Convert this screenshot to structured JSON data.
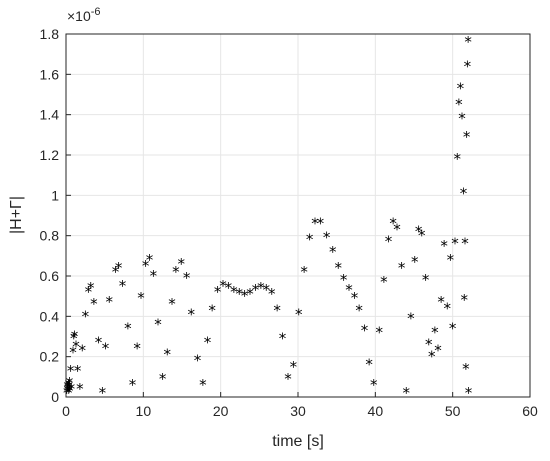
{
  "chart_data": {
    "type": "scatter",
    "title": "",
    "xlabel": "time [s]",
    "ylabel": "|H+Γ|",
    "y_exponent_label": "×10",
    "y_exponent_power": "-6",
    "xlim": [
      0,
      60
    ],
    "ylim": [
      0,
      1.8
    ],
    "x_ticks": [
      "0",
      "10",
      "20",
      "30",
      "40",
      "50",
      "60"
    ],
    "y_ticks": [
      "0",
      "0.2",
      "0.4",
      "0.6",
      "0.8",
      "1",
      "1.2",
      "1.4",
      "1.6",
      "1.8"
    ],
    "grid": true,
    "marker": "*",
    "marker_color": "#000000",
    "series": [
      {
        "x": [
          0.1,
          0.15,
          0.2,
          0.25,
          0.3,
          0.35,
          0.4,
          0.45,
          0.5,
          0.6,
          0.7,
          0.9,
          1.0,
          1.1,
          1.3,
          1.5,
          1.8,
          2.1,
          2.5,
          2.9,
          3.2,
          3.6,
          4.2,
          4.7,
          5.1,
          5.6,
          6.4,
          6.8,
          7.3,
          8.0,
          8.6,
          9.2,
          9.7,
          10.3,
          10.8,
          11.3,
          11.9,
          12.5,
          13.1,
          13.7,
          14.2,
          14.9,
          15.6,
          16.2,
          17.0,
          17.7,
          18.3,
          18.9,
          19.6,
          20.3,
          21.0,
          21.7,
          22.4,
          23.1,
          23.8,
          24.5,
          25.2,
          25.9,
          26.6,
          27.3,
          28.0,
          28.7,
          29.4,
          30.1,
          30.8,
          31.5,
          32.2,
          32.9,
          33.7,
          34.5,
          35.2,
          35.9,
          36.6,
          37.3,
          37.9,
          38.6,
          39.2,
          39.8,
          40.5,
          41.1,
          41.7,
          42.3,
          42.8,
          43.4,
          44.0,
          44.6,
          45.1,
          45.6,
          46.0,
          46.5,
          46.9,
          47.3,
          47.7,
          48.1,
          48.5,
          48.9,
          49.3,
          49.7,
          50.0,
          50.3,
          50.6,
          50.8,
          51.0,
          51.2,
          51.4,
          51.5,
          51.6,
          51.7,
          51.8,
          51.9,
          52.0,
          52.05
        ],
        "y": [
          0.02,
          0.05,
          0.03,
          0.04,
          0.06,
          0.02,
          0.05,
          0.07,
          0.03,
          0.13,
          0.04,
          0.22,
          0.29,
          0.3,
          0.25,
          0.13,
          0.04,
          0.23,
          0.4,
          0.52,
          0.54,
          0.46,
          0.27,
          0.02,
          0.24,
          0.47,
          0.62,
          0.64,
          0.55,
          0.34,
          0.06,
          0.24,
          0.49,
          0.65,
          0.68,
          0.6,
          0.36,
          0.09,
          0.21,
          0.46,
          0.62,
          0.66,
          0.59,
          0.41,
          0.18,
          0.06,
          0.27,
          0.43,
          0.52,
          0.55,
          0.54,
          0.52,
          0.51,
          0.5,
          0.51,
          0.53,
          0.54,
          0.53,
          0.51,
          0.43,
          0.29,
          0.09,
          0.15,
          0.41,
          0.62,
          0.78,
          0.86,
          0.86,
          0.79,
          0.72,
          0.64,
          0.58,
          0.53,
          0.49,
          0.43,
          0.33,
          0.16,
          0.06,
          0.32,
          0.57,
          0.77,
          0.86,
          0.83,
          0.64,
          0.02,
          0.39,
          0.67,
          0.82,
          0.8,
          0.58,
          0.26,
          0.2,
          0.32,
          0.23,
          0.47,
          0.75,
          0.44,
          0.68,
          0.34,
          0.76,
          1.18,
          1.45,
          1.53,
          1.38,
          1.01,
          0.48,
          0.76,
          0.14,
          1.29,
          1.64,
          1.76,
          0.02
        ]
      }
    ]
  }
}
